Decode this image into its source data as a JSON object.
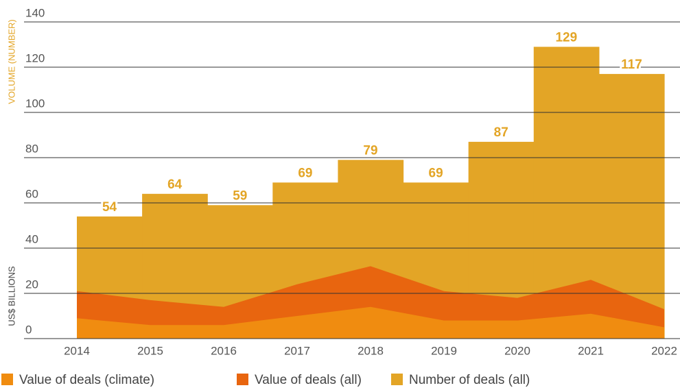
{
  "chart_data": {
    "type": "area",
    "y_label_top": "VOLUME (NUMBER)",
    "y_label_bottom": "US$ BILLIONS",
    "categories": [
      "2014",
      "2015",
      "2016",
      "2017",
      "2018",
      "2019",
      "2020",
      "2021",
      "2022"
    ],
    "series": [
      {
        "name": "Value of deals (climate)",
        "color": "#f08c10",
        "values": [
          9,
          6,
          6,
          10,
          14,
          8,
          8,
          11,
          5
        ]
      },
      {
        "name": "Value of deals (all)",
        "color": "#e8650f",
        "values": [
          21,
          17,
          14,
          24,
          32,
          21,
          18,
          26,
          13
        ]
      },
      {
        "name": "Number of deals (all)",
        "color": "#e3a526",
        "style": "step",
        "values": [
          54,
          64,
          59,
          69,
          79,
          69,
          87,
          129,
          117
        ]
      }
    ],
    "ylim": [
      0,
      140
    ],
    "yticks": [
      0,
      20,
      40,
      60,
      80,
      100,
      120,
      140
    ],
    "grid": true
  }
}
